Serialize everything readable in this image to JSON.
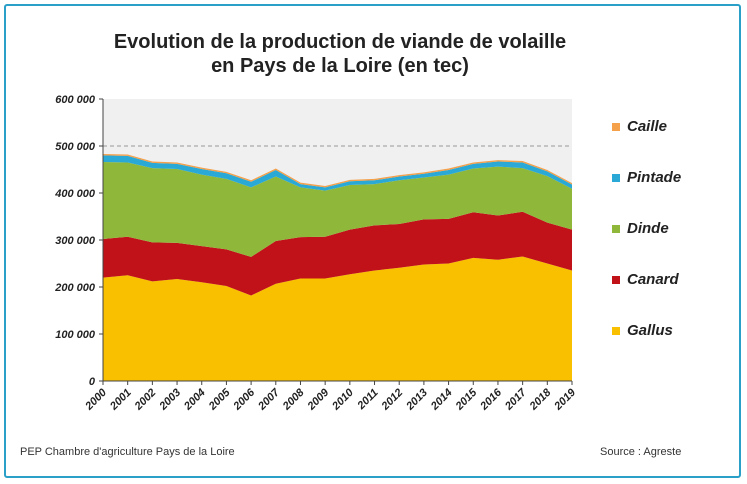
{
  "chart_data": {
    "type": "area",
    "stacked": true,
    "title_line1": "Evolution de la production de viande de volaille",
    "title_line2": "en Pays de la Loire (en tec)",
    "xlabel": "",
    "ylabel": "",
    "x": [
      "2000",
      "2001",
      "2002",
      "2003",
      "2004",
      "2005",
      "2006",
      "2007",
      "2008",
      "2009",
      "2010",
      "2011",
      "2012",
      "2013",
      "2014",
      "2015",
      "2016",
      "2017",
      "2018",
      "2019"
    ],
    "ylim": [
      0,
      600000
    ],
    "yticks": [
      0,
      100000,
      200000,
      300000,
      400000,
      500000,
      600000
    ],
    "ytick_labels": [
      "0",
      "100 000",
      "200 000",
      "300 000",
      "400 000",
      "500 000",
      "600 000"
    ],
    "reference_line": 500000,
    "series": [
      {
        "name": "Gallus",
        "color": "#f9c000",
        "values": [
          220000,
          225000,
          212000,
          217000,
          210000,
          202000,
          182000,
          207000,
          218000,
          218000,
          227000,
          235000,
          241000,
          248000,
          250000,
          262000,
          258000,
          265000,
          250000,
          235000
        ]
      },
      {
        "name": "Canard",
        "color": "#c1121a",
        "values": [
          82000,
          82000,
          83000,
          77000,
          77000,
          78000,
          82000,
          91000,
          88000,
          89000,
          95000,
          96000,
          93000,
          96000,
          95000,
          97000,
          94000,
          95000,
          87000,
          87000
        ]
      },
      {
        "name": "Dinde",
        "color": "#8fb83b",
        "values": [
          164000,
          158000,
          158000,
          157000,
          152000,
          150000,
          148000,
          137000,
          106000,
          98000,
          95000,
          88000,
          93000,
          89000,
          94000,
          93000,
          104000,
          93000,
          99000,
          87000
        ]
      },
      {
        "name": "Pintade",
        "color": "#2ba9d6",
        "values": [
          14000,
          14000,
          11000,
          11000,
          12000,
          12000,
          12000,
          14000,
          7000,
          7000,
          8000,
          8000,
          8000,
          8000,
          10000,
          10000,
          11000,
          12000,
          10000,
          9000
        ]
      },
      {
        "name": "Caille",
        "color": "#f5a04a",
        "values": [
          3000,
          3000,
          3000,
          3000,
          3000,
          3000,
          3000,
          3000,
          3000,
          3000,
          3000,
          3000,
          3000,
          3000,
          3000,
          3000,
          3000,
          3000,
          3000,
          3000
        ]
      }
    ],
    "legend_position": "right",
    "legend_order": [
      "Caille",
      "Pintade",
      "Dinde",
      "Canard",
      "Gallus"
    ],
    "grid": false
  },
  "footer": {
    "left": "PEP Chambre d'agriculture Pays de la Loire",
    "right": "Source : Agreste"
  }
}
